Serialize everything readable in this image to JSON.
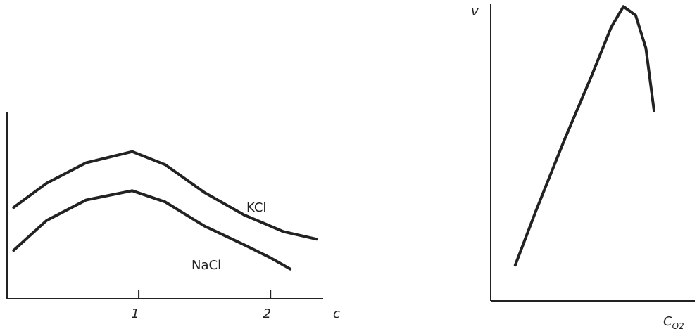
{
  "chart_data": [
    {
      "type": "line",
      "x_label": "c",
      "xlim": [
        0,
        2.4
      ],
      "xticks": [
        1,
        2
      ],
      "ylim": [
        0,
        1
      ],
      "series": [
        {
          "name": "KCl",
          "color": "#222222",
          "x": [
            0.05,
            0.3,
            0.6,
            0.95,
            1.2,
            1.5,
            1.8,
            2.1,
            2.35
          ],
          "values": [
            0.49,
            0.62,
            0.73,
            0.79,
            0.72,
            0.57,
            0.45,
            0.36,
            0.32
          ]
        },
        {
          "name": "NaCl",
          "color": "#222222",
          "x": [
            0.05,
            0.3,
            0.6,
            0.95,
            1.2,
            1.5,
            1.8,
            2.0,
            2.15
          ],
          "values": [
            0.26,
            0.42,
            0.53,
            0.58,
            0.52,
            0.39,
            0.29,
            0.22,
            0.16
          ]
        }
      ]
    },
    {
      "type": "line",
      "y_label": "v",
      "x_label": "C",
      "x_label_subscript": "O2",
      "xlim": [
        0,
        1
      ],
      "ylim": [
        0,
        1
      ],
      "series": [
        {
          "color": "#222222",
          "x": [
            0.12,
            0.22,
            0.36,
            0.49,
            0.59,
            0.65,
            0.71,
            0.76,
            0.8
          ],
          "values": [
            0.12,
            0.3,
            0.54,
            0.75,
            0.92,
            0.99,
            0.96,
            0.85,
            0.64
          ]
        }
      ]
    }
  ]
}
